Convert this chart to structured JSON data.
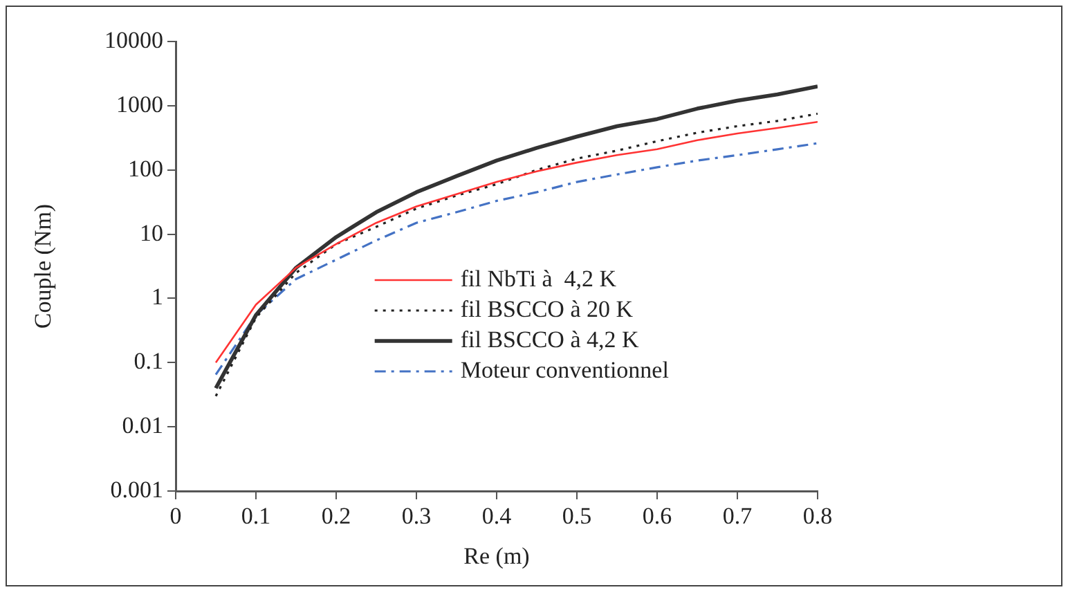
{
  "chart_data": {
    "type": "line",
    "xlabel": "Re (m)",
    "ylabel": "Couple (Nm)",
    "log": "y",
    "marker": "none",
    "grid": false,
    "legend": "right",
    "x": [
      0.05,
      0.1,
      0.15,
      0.2,
      0.25,
      0.3,
      0.35,
      0.4,
      0.45,
      0.5,
      0.55,
      0.6,
      0.65,
      0.7,
      0.75,
      0.8
    ],
    "xlim": [
      0,
      0.8
    ],
    "xticks": [
      0,
      0.1,
      0.2,
      0.3,
      0.4,
      0.5,
      0.6,
      0.7,
      0.8
    ],
    "ylim": [
      0.001,
      10000
    ],
    "yticks": [
      0.001,
      0.01,
      0.1,
      1,
      10,
      100,
      1000,
      10000
    ],
    "series": [
      {
        "name": "fil NbTi à  4,2 K",
        "color": "#ff3333",
        "line_style": "solid",
        "values": [
          0.1,
          0.8,
          3,
          7,
          15,
          27,
          42,
          65,
          95,
          130,
          170,
          210,
          290,
          370,
          450,
          560
        ]
      },
      {
        "name": "fil BSCCO à 20 K",
        "color": "#222222",
        "line_style": "dotted",
        "values": [
          0.03,
          0.5,
          2.5,
          7,
          13,
          25,
          40,
          60,
          100,
          150,
          200,
          280,
          380,
          480,
          580,
          750
        ]
      },
      {
        "name": "fil BSCCO à 4,2 K",
        "color": "#333333",
        "line_style": "solid",
        "values": [
          0.04,
          0.55,
          3,
          9,
          22,
          45,
          80,
          140,
          220,
          330,
          480,
          620,
          900,
          1200,
          1500,
          2000
        ]
      },
      {
        "name": "Moteur conventionnel",
        "color": "#4472c4",
        "line_style": "dashdot",
        "values": [
          0.065,
          0.55,
          2,
          4,
          8,
          15,
          22,
          33,
          45,
          65,
          85,
          110,
          140,
          170,
          210,
          260
        ]
      }
    ]
  }
}
